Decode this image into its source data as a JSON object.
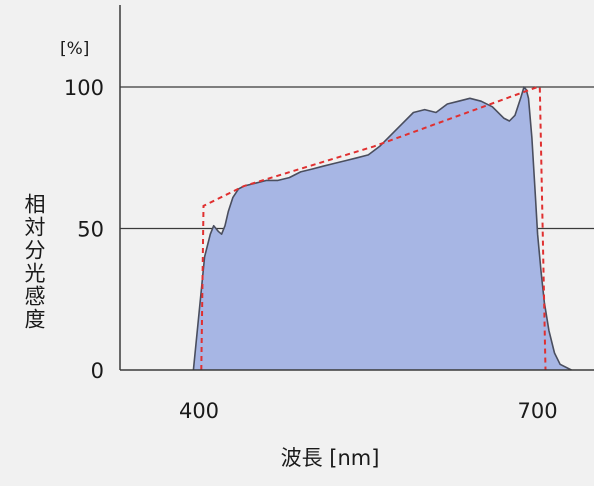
{
  "chart_data": {
    "type": "area",
    "title": "",
    "xlabel": "波長 [nm]",
    "ylabel": "相対分光感度",
    "yunit": "[%]",
    "xlim": [
      330,
      750
    ],
    "ylim": [
      0,
      125
    ],
    "x_ticks": [
      {
        "value": 400,
        "label": "400"
      },
      {
        "value": 700,
        "label": "700"
      }
    ],
    "y_ticks": [
      {
        "value": 0,
        "label": "0"
      },
      {
        "value": 50,
        "label": "50"
      },
      {
        "value": 100,
        "label": "100"
      }
    ],
    "grid": "horizontal lines at 50 and 100",
    "series": [
      {
        "type": "area",
        "color": "#a7b6e4",
        "edge_color": "#4a4e5e",
        "x": [
          395,
          400,
          405,
          410,
          413,
          417,
          420,
          423,
          426,
          430,
          435,
          440,
          450,
          460,
          470,
          480,
          490,
          500,
          510,
          520,
          530,
          540,
          550,
          560,
          570,
          580,
          590,
          600,
          610,
          620,
          630,
          640,
          650,
          660,
          670,
          675,
          680,
          685,
          688,
          690,
          692,
          695,
          698,
          700,
          703,
          706,
          710,
          715,
          720,
          730
        ],
        "y": [
          0,
          20,
          40,
          48,
          51,
          49,
          48,
          51,
          56,
          61,
          64,
          65,
          66,
          67,
          67,
          68,
          70,
          71,
          72,
          73,
          74,
          75,
          76,
          79,
          83,
          87,
          91,
          92,
          91,
          94,
          95,
          96,
          95,
          93,
          89,
          88,
          90,
          96,
          100,
          99,
          96,
          82,
          62,
          48,
          35,
          24,
          14,
          6,
          2,
          0
        ]
      },
      {
        "type": "line",
        "style": "dashed",
        "color": "#e03030",
        "x": [
          402,
          404,
          440,
          555,
          700,
          702,
          707
        ],
        "y": [
          0,
          58,
          65,
          79,
          100,
          100,
          0
        ]
      }
    ]
  }
}
